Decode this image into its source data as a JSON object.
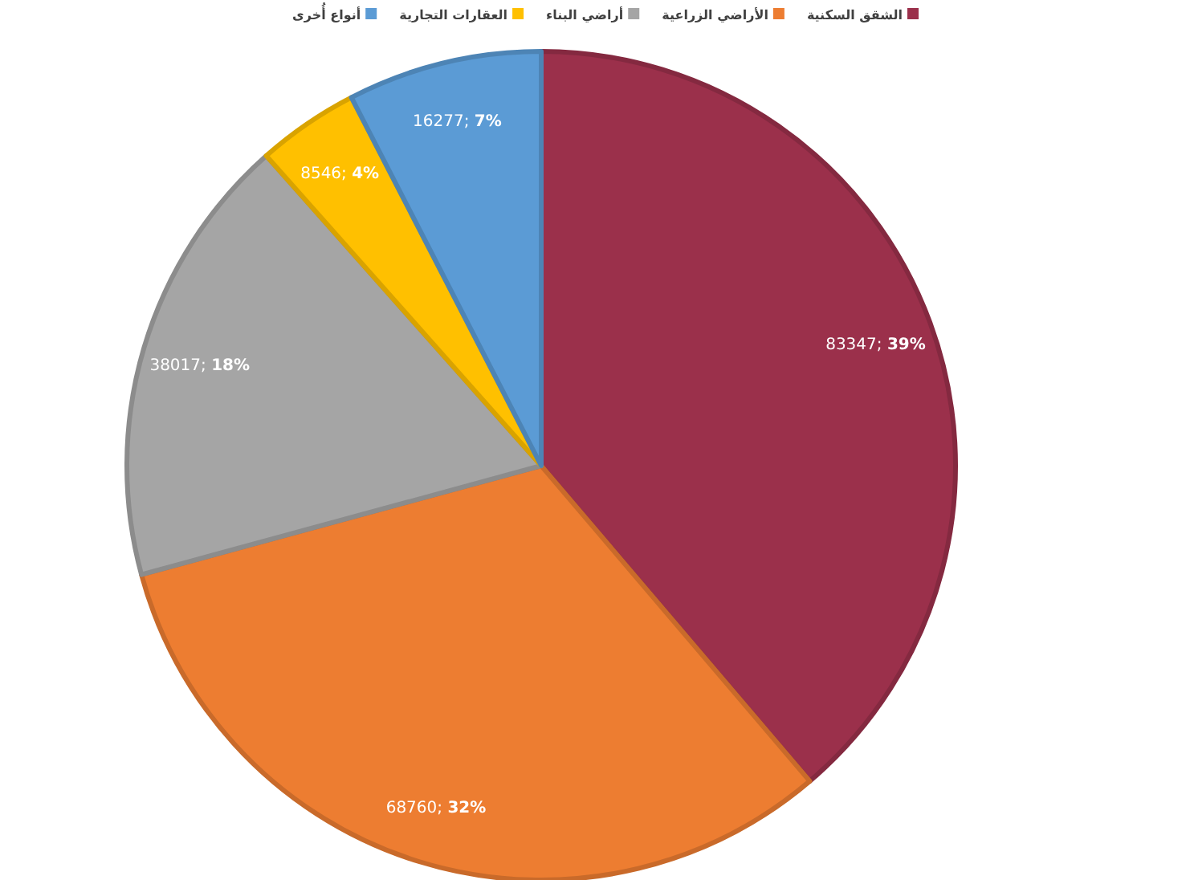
{
  "chart_data": {
    "type": "pie",
    "legend": "top",
    "categories": [
      "الشقق السكنية",
      "الأراضي الزراعية",
      "أراضي البناء",
      "العقارات التجارية",
      "أنواع أُخرى"
    ],
    "values": [
      83347,
      68760,
      38017,
      8546,
      16277
    ],
    "colors": [
      "#9b304b",
      "#ed7d31",
      "#a5a5a5",
      "#ffc000",
      "#5b9bd5"
    ],
    "value_labels": [
      "83347; 39%",
      "68760; 32%",
      "38017; 18%",
      "8546; 4%",
      "16277; 7%"
    ]
  }
}
